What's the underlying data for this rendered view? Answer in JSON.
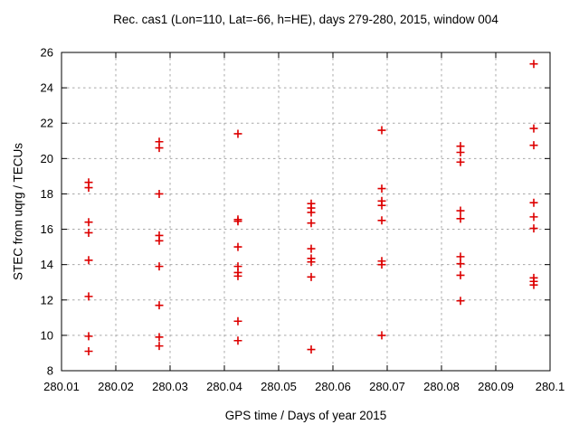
{
  "chart_data": {
    "type": "scatter",
    "title": "Rec. cas1 (Lon=110, Lat=-66, h=HE), days 279-280, 2015, window 004",
    "xlabel": "GPS time / Days of year 2015",
    "ylabel": "STEC from uqrg / TECUs",
    "xlim": [
      280.01,
      280.1
    ],
    "ylim": [
      8,
      26
    ],
    "xticks": [
      280.01,
      280.02,
      280.03,
      280.04,
      280.05,
      280.06,
      280.07,
      280.08,
      280.09,
      280.1
    ],
    "xtick_labels": [
      "280.01",
      "280.02",
      "280.03",
      "280.04",
      "280.05",
      "280.06",
      "280.07",
      "280.08",
      "280.09",
      "280.1"
    ],
    "yticks": [
      8,
      10,
      12,
      14,
      16,
      18,
      20,
      22,
      24,
      26
    ],
    "grid": true,
    "legend_position": "none",
    "marker": "plus",
    "marker_color": "#dd0000",
    "grid_color": "#a8a8a8",
    "axis_color": "#000000",
    "background_color": "#ffffff",
    "series": [
      {
        "name": "pass-280.015",
        "x": 280.015,
        "values": [
          18.65,
          18.35,
          16.4,
          15.8,
          14.25,
          12.2,
          9.95,
          9.1
        ]
      },
      {
        "name": "pass-280.028",
        "x": 280.028,
        "values": [
          20.95,
          20.6,
          18.0,
          15.65,
          15.35,
          13.9,
          11.7,
          9.9,
          9.4
        ]
      },
      {
        "name": "pass-280.0425",
        "x": 280.0425,
        "values": [
          21.4,
          16.55,
          16.45,
          15.0,
          13.9,
          13.55,
          13.35,
          10.8,
          9.7
        ]
      },
      {
        "name": "pass-280.056",
        "x": 280.056,
        "values": [
          17.45,
          17.2,
          16.95,
          16.35,
          14.9,
          14.35,
          14.15,
          13.3,
          9.2
        ]
      },
      {
        "name": "pass-280.069",
        "x": 280.069,
        "values": [
          21.6,
          18.3,
          17.6,
          17.35,
          16.5,
          14.2,
          14.0,
          10.0
        ]
      },
      {
        "name": "pass-280.0835",
        "x": 280.0835,
        "values": [
          20.7,
          20.35,
          19.8,
          17.05,
          16.6,
          14.45,
          14.05,
          13.4,
          11.95
        ]
      },
      {
        "name": "pass-280.097",
        "x": 280.097,
        "values": [
          25.35,
          21.7,
          20.75,
          17.5,
          16.7,
          16.05,
          13.25,
          13.05,
          12.85
        ]
      }
    ]
  },
  "plot_geometry_note": "x axis spans plot left-to-right edge; y axis 8 at bottom edge, 26 at top edge"
}
